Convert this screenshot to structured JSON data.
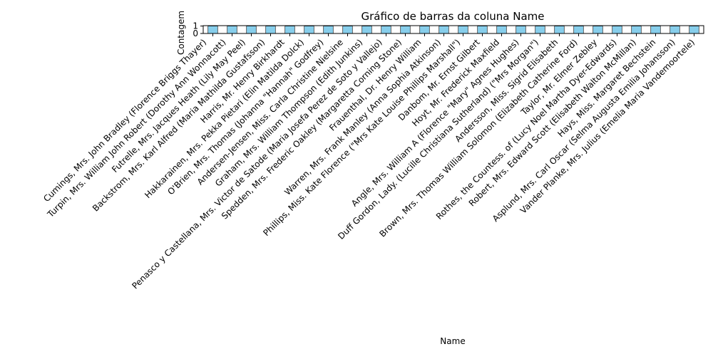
{
  "chart_data": {
    "type": "bar",
    "title": "Gráfico de barras da coluna Name",
    "xlabel": "Name",
    "ylabel": "Contagem",
    "yticks": [
      0,
      1
    ],
    "ylim": [
      0,
      1.05
    ],
    "bar_color": "#87ceeb",
    "edge_color": "#000000",
    "grid": false,
    "legend": "none",
    "categories": [
      "Cumings, Mrs. John Bradley (Florence Briggs Thayer)",
      "Turpin, Mrs. William John Robert (Dorothy Ann Wonnacott)",
      "Futrelle, Mrs. Jacques Heath (Lily May Peel)",
      "Backstrom, Mrs. Karl Alfred (Maria Mathilda Gustafsson)",
      "Harris, Mr. Henry Birkhardt",
      "Hakkarainen, Mrs. Pekka Pietari (Elin Matilda Dolck)",
      "O'Brien, Mrs. Thomas (Johanna \"Hannah\" Godfrey)",
      "Andersen-Jensen, Miss. Carla Christine Nielsine",
      "Graham, Mrs. William Thompson (Edith Junkins)",
      "Penasco y Castellana, Mrs. Victor de Satode (Maria Josefa Perez de Soto y Vallejo)",
      "Spedden, Mrs. Frederic Oakley (Margaretta Corning Stone)",
      "Frauenthal, Dr. Henry William",
      "Warren, Mrs. Frank Manley (Anna Sophia Atkinson)",
      "Phillips, Miss. Kate Florence (\"Mrs Kate Louise Phillips Marshall\")",
      "Danbom, Mr. Ernst Gilbert",
      "Hoyt, Mr. Frederick Maxfield",
      "Angle, Mrs. William A (Florence \"Mary\" Agnes Hughes)",
      "Duff Gordon, Lady. (Lucille Christiana Sutherland) (\"Mrs Morgan\")",
      "Andersson, Miss. Sigrid Elisabeth",
      "Brown, Mrs. Thomas William Solomon (Elizabeth Catherine Ford)",
      "Taylor, Mr. Elmer Zebley",
      "Rothes, the Countess. of (Lucy Noel Martha Dyer-Edwards)",
      "Robert, Mrs. Edward Scott (Elisabeth Walton McMillan)",
      "Hays, Miss. Margaret Bechstein",
      "Asplund, Mrs. Carl Oscar (Selma Augusta Emilia Johansson)",
      "Vander Planke, Mrs. Julius (Emelia Maria Vandemoortele)"
    ],
    "values": [
      1,
      1,
      1,
      1,
      1,
      1,
      1,
      1,
      1,
      1,
      1,
      1,
      1,
      1,
      1,
      1,
      1,
      1,
      1,
      1,
      1,
      1,
      1,
      1,
      1,
      1
    ]
  }
}
